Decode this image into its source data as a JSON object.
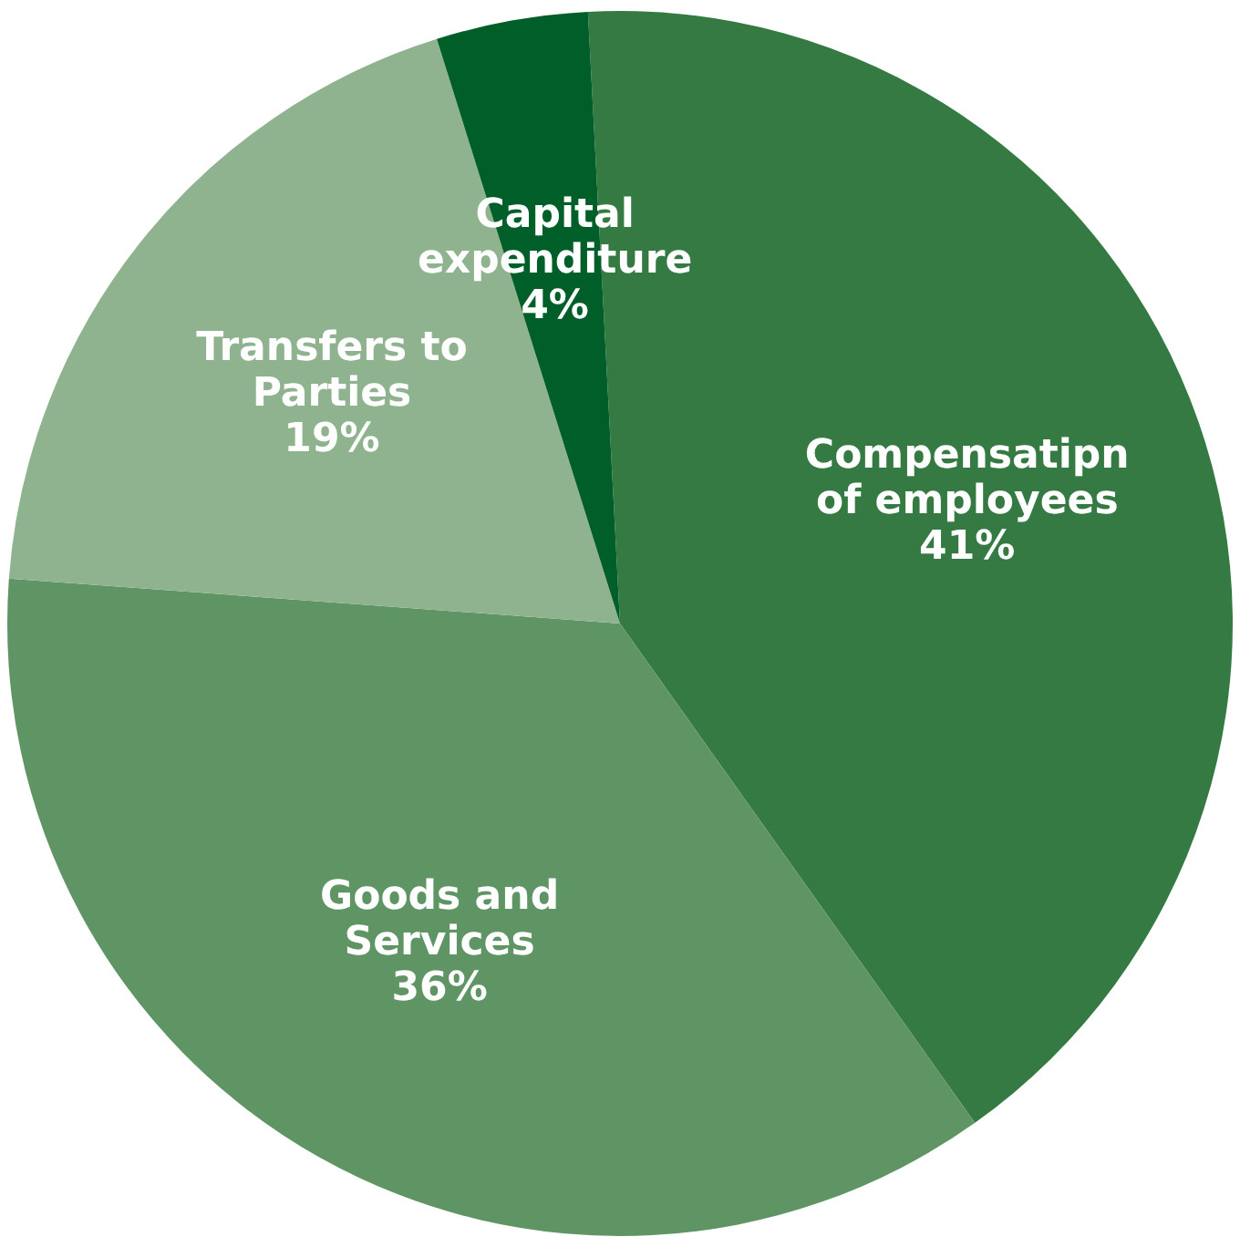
{
  "chart_data": {
    "type": "pie",
    "categories": [
      "Compensatipn of employees",
      "Goods and Services",
      "Transfers to Parties",
      "Capital expenditure"
    ],
    "values": [
      41,
      36,
      19,
      4
    ],
    "value_labels": [
      "41%",
      "36%",
      "19%",
      "4%"
    ],
    "colors": [
      "#357a43",
      "#5f9464",
      "#8fb38f",
      "#005f28"
    ],
    "legend": false
  }
}
